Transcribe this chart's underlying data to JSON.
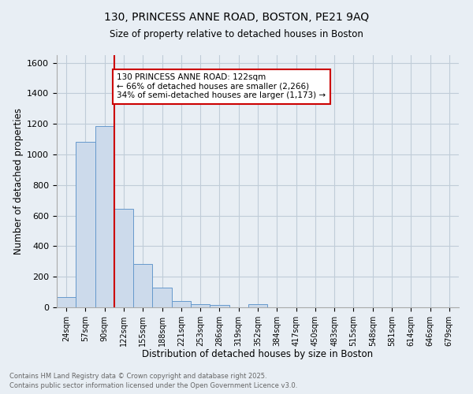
{
  "title_line1": "130, PRINCESS ANNE ROAD, BOSTON, PE21 9AQ",
  "title_line2": "Size of property relative to detached houses in Boston",
  "xlabel": "Distribution of detached houses by size in Boston",
  "ylabel": "Number of detached properties",
  "bar_labels": [
    "24sqm",
    "57sqm",
    "90sqm",
    "122sqm",
    "155sqm",
    "188sqm",
    "221sqm",
    "253sqm",
    "286sqm",
    "319sqm",
    "352sqm",
    "384sqm",
    "417sqm",
    "450sqm",
    "483sqm",
    "515sqm",
    "548sqm",
    "581sqm",
    "614sqm",
    "646sqm",
    "679sqm"
  ],
  "bar_values": [
    65,
    1085,
    1185,
    645,
    285,
    130,
    40,
    22,
    18,
    0,
    20,
    0,
    0,
    0,
    0,
    0,
    0,
    0,
    0,
    0,
    0
  ],
  "bar_color": "#ccdaeb",
  "bar_edge_color": "#6699cc",
  "vline_color": "#cc0000",
  "annotation_text": "130 PRINCESS ANNE ROAD: 122sqm\n← 66% of detached houses are smaller (2,266)\n34% of semi-detached houses are larger (1,173) →",
  "annotation_box_color": "#ffffff",
  "annotation_box_edge": "#cc0000",
  "ylim": [
    0,
    1650
  ],
  "yticks": [
    0,
    200,
    400,
    600,
    800,
    1000,
    1200,
    1400,
    1600
  ],
  "grid_color": "#c0ccd8",
  "bg_color": "#e8eef4",
  "footer_line1": "Contains HM Land Registry data © Crown copyright and database right 2025.",
  "footer_line2": "Contains public sector information licensed under the Open Government Licence v3.0.",
  "footer_color": "#666666"
}
